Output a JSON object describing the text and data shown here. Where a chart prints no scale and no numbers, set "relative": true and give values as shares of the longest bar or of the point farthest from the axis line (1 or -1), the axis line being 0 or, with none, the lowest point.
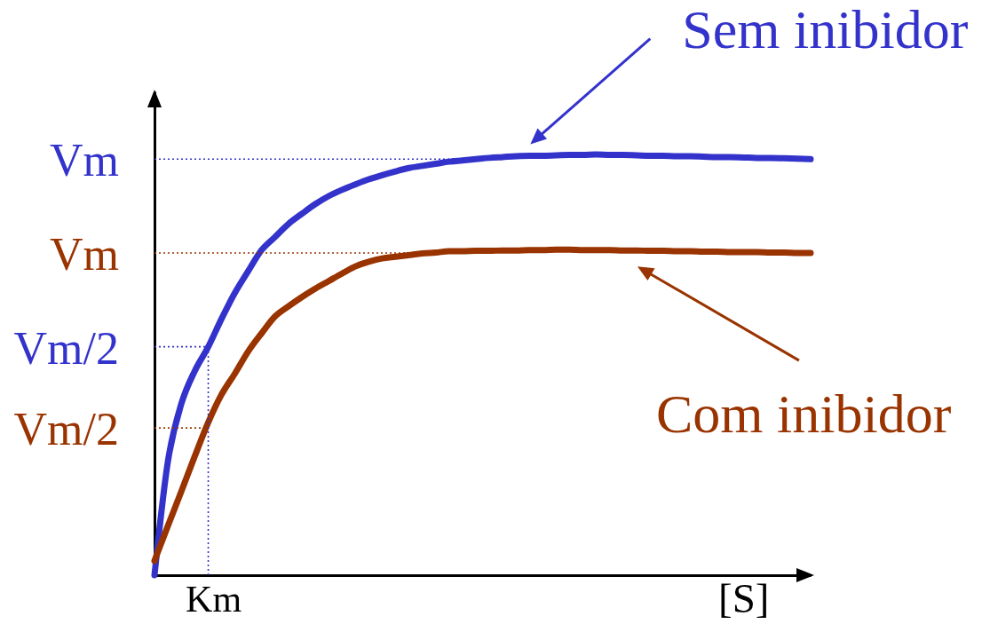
{
  "chart_data": {
    "type": "line",
    "relative": true,
    "xlabel": "[S]",
    "line_style": "solid",
    "categories": [
      null,
      null,
      null,
      null,
      null,
      null,
      null,
      null,
      null,
      null,
      null,
      null,
      null,
      null,
      null,
      null,
      null,
      null,
      null,
      null,
      null,
      null,
      null,
      null,
      null,
      null,
      null,
      null,
      null,
      null,
      null,
      null,
      null,
      null,
      null,
      null,
      null,
      null,
      null,
      null,
      null,
      null,
      null,
      null,
      null,
      null,
      null,
      null,
      null,
      null
    ],
    "series": [
      {
        "name": "Sem inibidor",
        "color": "#3333cc",
        "values": [
          0,
          0.27,
          0.407,
          0.485,
          0.542,
          0.609,
          0.671,
          0.723,
          0.773,
          0.804,
          0.835,
          0.859,
          0.882,
          0.901,
          0.916,
          0.929,
          0.941,
          0.951,
          0.96,
          0.968,
          0.973,
          0.978,
          0.983,
          0.986,
          0.989,
          0.992,
          0.994,
          0.996,
          0.997,
          0.997,
          0.998,
          0.999,
          0.999,
          1,
          0.999,
          0.999,
          0.998,
          0.997,
          0.997,
          0.996,
          0.996,
          0.995,
          0.994,
          0.994,
          0.993,
          0.992,
          0.992,
          0.991,
          0.99,
          0.989
        ]
      },
      {
        "name": "Com inibidor",
        "color": "#993300",
        "values": [
          0.034,
          0.117,
          0.199,
          0.282,
          0.362,
          0.429,
          0.479,
          0.532,
          0.575,
          0.615,
          0.639,
          0.661,
          0.681,
          0.699,
          0.717,
          0.734,
          0.745,
          0.753,
          0.757,
          0.761,
          0.765,
          0.767,
          0.77,
          0.77,
          0.771,
          0.771,
          0.772,
          0.772,
          0.773,
          0.773,
          0.774,
          0.774,
          0.773,
          0.773,
          0.773,
          0.772,
          0.772,
          0.771,
          0.771,
          0.77,
          0.77,
          0.769,
          0.769,
          0.768,
          0.768,
          0.768,
          0.767,
          0.767,
          0.766,
          0.766
        ]
      }
    ],
    "ref_lines": [
      {
        "axis": "y",
        "value": 0.989,
        "label": "Vm",
        "color": "#3333cc",
        "line_style": "dotted"
      },
      {
        "axis": "y",
        "value": 0.766,
        "label": "Vm",
        "color": "#993300",
        "line_style": "dotted"
      },
      {
        "axis": "y",
        "value": 0.543,
        "label": "Vm/2",
        "color": "#3333cc",
        "line_style": "dotted"
      },
      {
        "axis": "y",
        "value": 0.35,
        "label": "Vm/2",
        "color": "#993300",
        "line_style": "dotted"
      }
    ],
    "annotations": [
      "Km"
    ]
  }
}
